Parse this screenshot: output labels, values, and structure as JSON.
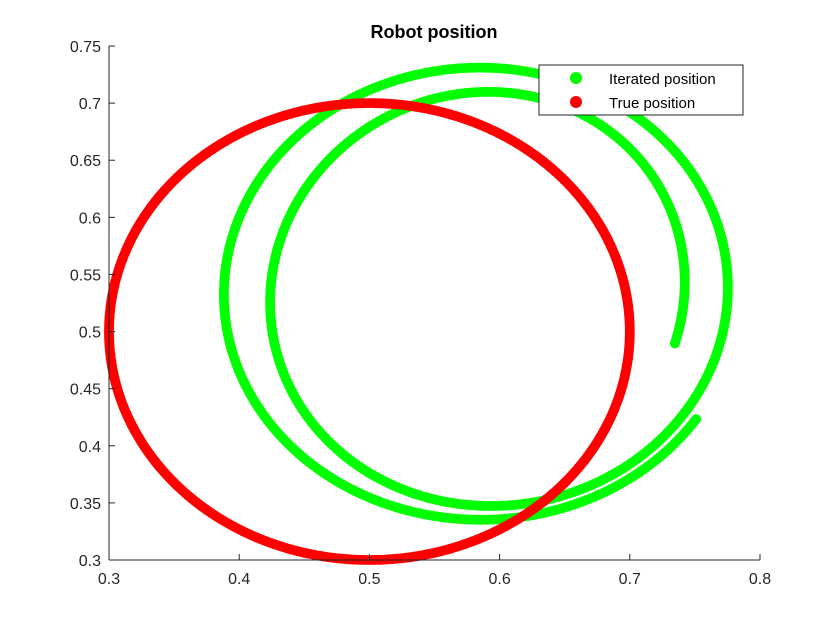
{
  "chart_data": {
    "type": "scatter",
    "title": "Robot position",
    "xlabel": "",
    "ylabel": "",
    "xlim": [
      0.3,
      0.8
    ],
    "ylim": [
      0.3,
      0.75
    ],
    "xticks": [
      "0.3",
      "0.4",
      "0.5",
      "0.6",
      "0.7",
      "0.8"
    ],
    "yticks": [
      "0.3",
      "0.35",
      "0.4",
      "0.45",
      "0.5",
      "0.55",
      "0.6",
      "0.65",
      "0.7",
      "0.75"
    ],
    "grid": false,
    "legend_position": "top-right",
    "series": [
      {
        "name": "Iterated position",
        "color": "#00ff00",
        "marker": "filled-circle",
        "shape": "spiral converging from start point to circle",
        "start": [
          0.705,
          0.505
        ],
        "center_start": [
          0.6,
          0.535
        ],
        "center_end": [
          0.585,
          0.535
        ],
        "rx_start": 0.14,
        "rx_end": 0.2,
        "ry_start": 0.165,
        "ry_end": 0.2
      },
      {
        "name": "True position",
        "color": "#ff0000",
        "marker": "filled-circle",
        "shape": "circle",
        "center": [
          0.5,
          0.5
        ],
        "radius": 0.2
      }
    ]
  }
}
